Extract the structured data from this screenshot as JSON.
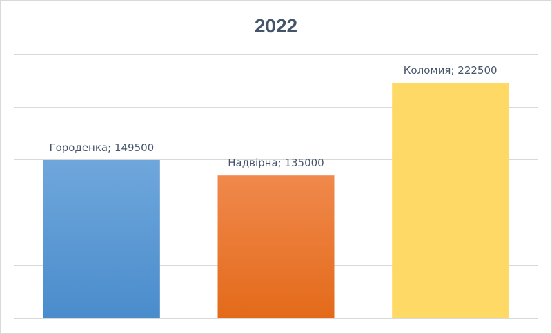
{
  "chart_data": {
    "type": "bar",
    "title": "2022",
    "xlabel": "",
    "ylabel": "",
    "categories": [
      "Городенка",
      "Надвірна",
      "Коломия"
    ],
    "values": [
      149500,
      135000,
      222500
    ],
    "data_labels": [
      "Городенка; 149500",
      "Надвірна; 135000",
      "Коломия; 222500"
    ],
    "ylim": [
      0,
      250000
    ],
    "y_major_unit": 50000,
    "grid": true,
    "legend": "none",
    "axis_tick_labels_visible": false,
    "colors": {
      "Городенка": {
        "top": "#6fa7dc",
        "bottom": "#4a8ccc"
      },
      "Надвірна": {
        "top": "#f0894c",
        "bottom": "#e36a1a"
      },
      "Коломия": {
        "top": "#ffd966",
        "bottom": "#ffd966"
      },
      "gridline": "#d9d9d9",
      "title": "#44546a",
      "label": "#44546a"
    }
  }
}
